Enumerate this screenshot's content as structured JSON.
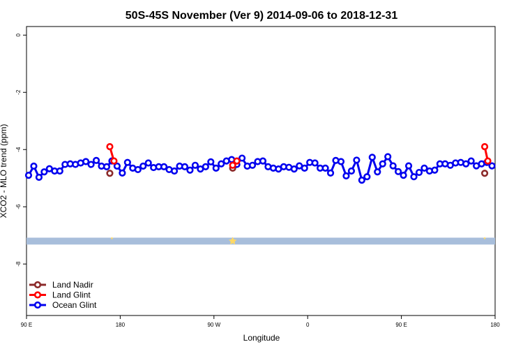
{
  "chart_data": {
    "type": "line",
    "title": "50S-45S November (Ver 9)   2014-09-06 to 2018-12-31",
    "xlabel": "Longitude",
    "ylabel": "XCO2 - MLO trend (ppm)",
    "x_ticks": [
      {
        "pos": 0,
        "label": "90 E"
      },
      {
        "pos": 90,
        "label": "180"
      },
      {
        "pos": 180,
        "label": "90 W"
      },
      {
        "pos": 270,
        "label": "0"
      },
      {
        "pos": 360,
        "label": "90 E"
      },
      {
        "pos": 450,
        "label": "180"
      }
    ],
    "xlim": [
      0,
      450
    ],
    "ylim": [
      -9.8,
      0.3
    ],
    "y_ticks": [
      0,
      -2,
      -4,
      -6,
      -8
    ],
    "grid": false,
    "legend_position": "bottom-left",
    "band": {
      "y_from": -7.08,
      "y_to": -7.32,
      "color": "#a8bedb"
    },
    "series": [
      {
        "name": "Land Nadir",
        "color": "#8b2a2a",
        "x": [
          80,
          198,
          440
        ],
        "y": [
          -4.83,
          -4.65,
          -4.83
        ]
      },
      {
        "name": "Land Glint",
        "color": "#ff0000",
        "segments": [
          {
            "x": [
              80,
              84
            ],
            "y": [
              -3.9,
              -4.4
            ]
          },
          {
            "x": [
              198,
              202
            ],
            "y": [
              -4.55,
              -4.4
            ]
          },
          {
            "x": [
              440,
              443
            ],
            "y": [
              -3.9,
              -4.4
            ]
          }
        ]
      },
      {
        "name": "Ocean Glint",
        "color": "#0000ee",
        "x": [
          2,
          7,
          12,
          17,
          22,
          27,
          32,
          37,
          42,
          47,
          52,
          57,
          62,
          67,
          72,
          77,
          82,
          87,
          92,
          97,
          102,
          107,
          112,
          117,
          122,
          127,
          132,
          137,
          142,
          147,
          152,
          157,
          162,
          167,
          172,
          177,
          182,
          187,
          192,
          197,
          202,
          207,
          212,
          217,
          222,
          227,
          232,
          237,
          242,
          247,
          252,
          257,
          262,
          267,
          272,
          277,
          282,
          287,
          292,
          297,
          302,
          307,
          312,
          317,
          322,
          327,
          332,
          337,
          342,
          347,
          352,
          357,
          362,
          367,
          372,
          377,
          382,
          387,
          392,
          397,
          402,
          407,
          412,
          417,
          422,
          427,
          432,
          437,
          442,
          447
        ],
        "y": [
          -4.9,
          -4.58,
          -4.97,
          -4.78,
          -4.67,
          -4.75,
          -4.75,
          -4.52,
          -4.5,
          -4.52,
          -4.47,
          -4.42,
          -4.52,
          -4.38,
          -4.58,
          -4.6,
          -4.4,
          -4.58,
          -4.82,
          -4.45,
          -4.65,
          -4.7,
          -4.58,
          -4.47,
          -4.63,
          -4.6,
          -4.6,
          -4.7,
          -4.75,
          -4.58,
          -4.6,
          -4.72,
          -4.55,
          -4.68,
          -4.6,
          -4.43,
          -4.65,
          -4.5,
          -4.4,
          -4.35,
          -4.52,
          -4.3,
          -4.58,
          -4.55,
          -4.42,
          -4.4,
          -4.6,
          -4.65,
          -4.68,
          -4.6,
          -4.62,
          -4.68,
          -4.57,
          -4.65,
          -4.45,
          -4.47,
          -4.65,
          -4.65,
          -4.82,
          -4.38,
          -4.42,
          -4.92,
          -4.75,
          -4.37,
          -5.07,
          -4.95,
          -4.27,
          -4.78,
          -4.5,
          -4.25,
          -4.57,
          -4.77,
          -4.9,
          -4.57,
          -4.95,
          -4.8,
          -4.65,
          -4.75,
          -4.72,
          -4.5,
          -4.5,
          -4.55,
          -4.47,
          -4.45,
          -4.5,
          -4.4,
          -4.57,
          -4.5,
          -4.45,
          -4.57
        ]
      }
    ],
    "colors": {
      "star": "#ffd966",
      "band": "#a8bedb"
    }
  }
}
